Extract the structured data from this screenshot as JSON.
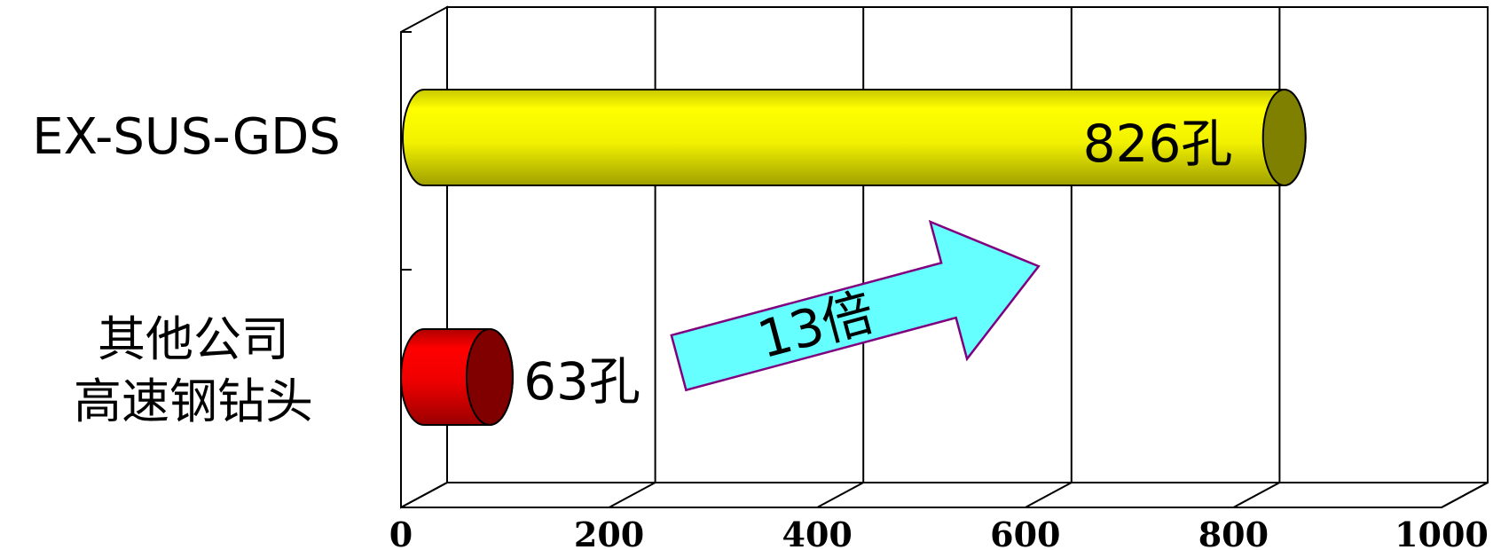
{
  "chart_data": {
    "type": "bar",
    "orientation": "horizontal",
    "style": "3d-cylinder",
    "categories": [
      "EX-SUS-GDS",
      "其他公司\n高速钢钻头"
    ],
    "values": [
      826,
      63
    ],
    "data_labels": [
      "826孔",
      "63孔"
    ],
    "colors": [
      "#f5f500",
      "#e60000"
    ],
    "xlim": [
      0,
      1000
    ],
    "x_ticks": [
      "0",
      "200",
      "400",
      "600",
      "800",
      "1000"
    ],
    "grid": true,
    "annotation": {
      "text": "13倍",
      "shape": "arrow",
      "fill": "#66ffff",
      "stroke": "#800080"
    }
  }
}
